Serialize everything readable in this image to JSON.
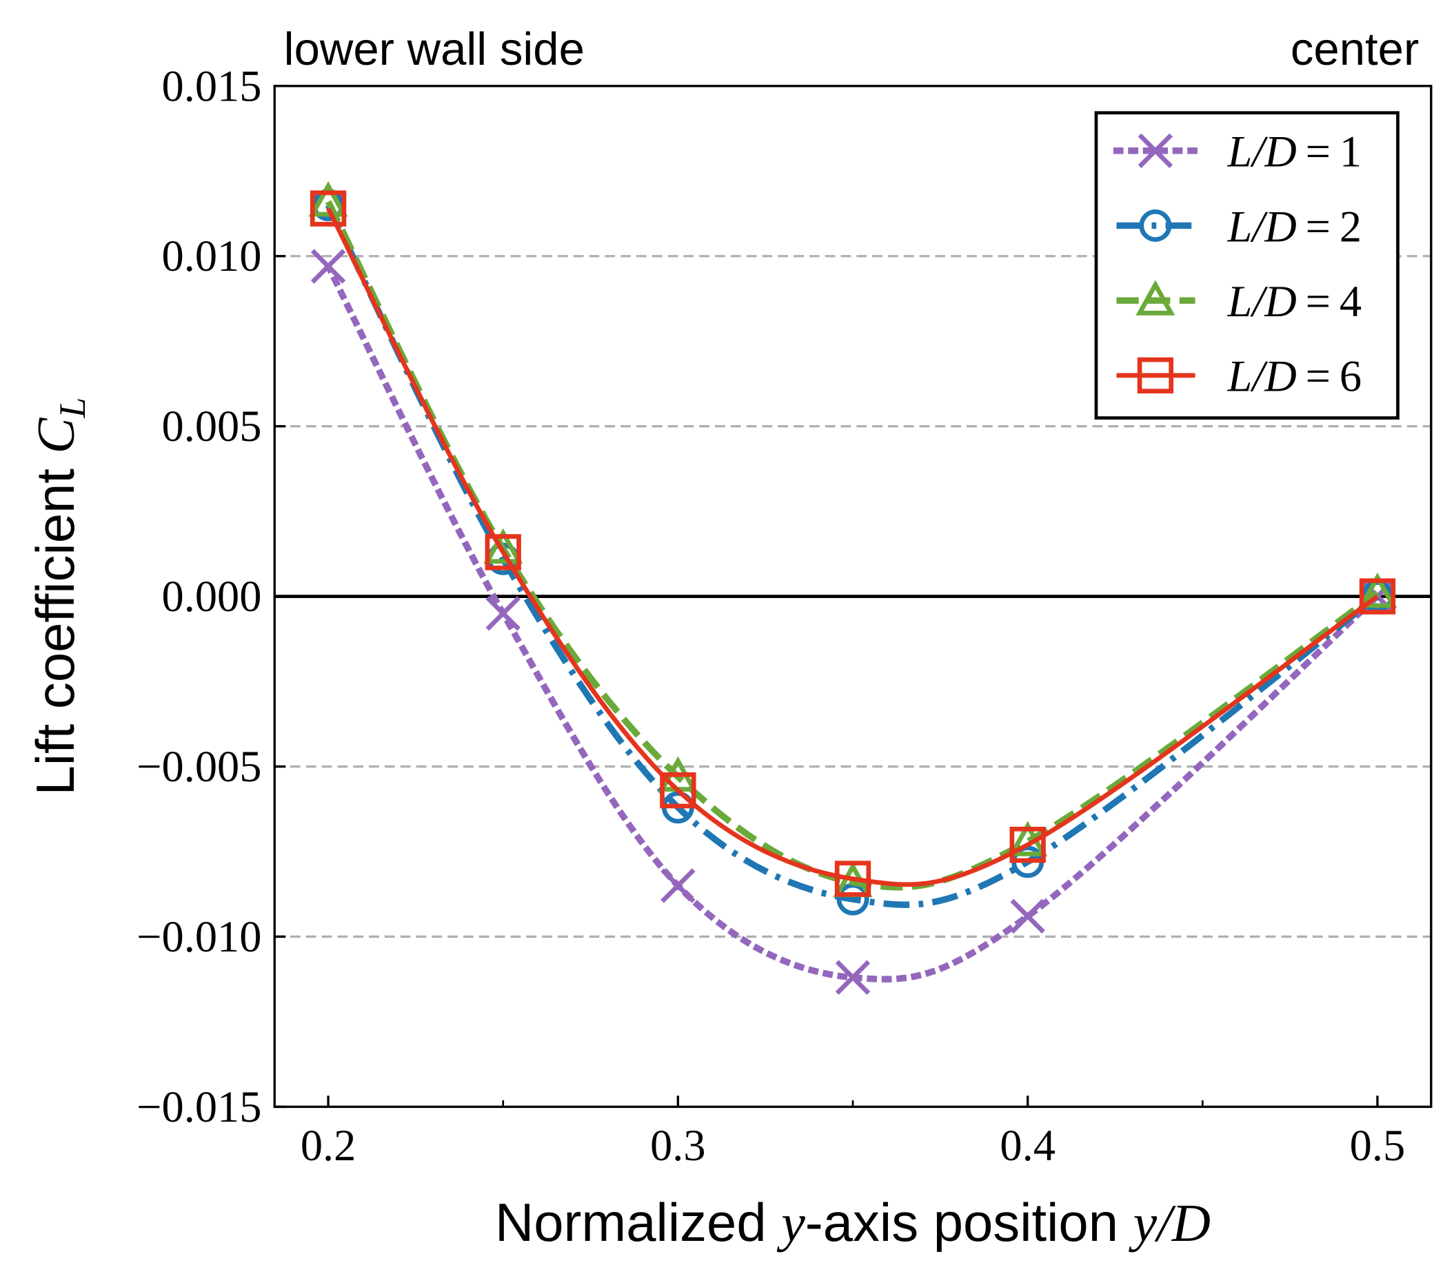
{
  "chart_data": {
    "type": "line",
    "xlabel": "Normalized y-axis position y/D",
    "ylabel": "Lift coefficient C_L",
    "xlabel_parts": {
      "pre": "Normalized ",
      "var1": "y",
      "mid": "-axis position ",
      "var2": "y/D"
    },
    "ylabel_parts": {
      "pre": "Lift coefficient ",
      "var": "C",
      "sub": "L"
    },
    "annotations": {
      "left": "lower wall side",
      "right": "center"
    },
    "xlim": [
      0.185,
      0.516
    ],
    "ylim": [
      -0.015,
      0.015
    ],
    "xticks": [
      0.2,
      0.3,
      0.4,
      0.5
    ],
    "xtick_labels": [
      "0.2",
      "0.3",
      "0.4",
      "0.5"
    ],
    "xminor": [
      0.25,
      0.35,
      0.45
    ],
    "yticks": [
      0.015,
      0.01,
      0.005,
      0.0,
      -0.005,
      -0.01,
      -0.015
    ],
    "ytick_labels": [
      "0.015",
      "0.010",
      "0.005",
      "0.000",
      "−0.005",
      "−0.010",
      "−0.015"
    ],
    "grid": "horizontal dashed",
    "legend_placement": "top-right",
    "x": [
      0.2,
      0.25,
      0.3,
      0.35,
      0.4,
      0.5
    ],
    "series": [
      {
        "name": "L/D = 1",
        "label_var": "L/D",
        "label_val": "1",
        "color": "#9467bd",
        "marker": "x",
        "dash": "dotted",
        "values": [
          0.0097,
          -0.0005,
          -0.0085,
          -0.0112,
          -0.0094,
          0.0
        ]
      },
      {
        "name": "L/D = 2",
        "label_var": "L/D",
        "label_val": "2",
        "color": "#1f77b4",
        "marker": "o",
        "dash": "dashdot",
        "values": [
          0.0115,
          0.0011,
          -0.0062,
          -0.0089,
          -0.0078,
          0.0
        ]
      },
      {
        "name": "L/D = 4",
        "label_var": "L/D",
        "label_val": "4",
        "color": "#6aaa3a",
        "marker": "triangle",
        "dash": "dashed",
        "values": [
          0.0116,
          0.0014,
          -0.0053,
          -0.0084,
          -0.0072,
          0.0001
        ]
      },
      {
        "name": "L/D = 6",
        "label_var": "L/D",
        "label_val": "6",
        "color": "#e5341d",
        "marker": "square",
        "dash": "solid",
        "values": [
          0.0114,
          0.0013,
          -0.0057,
          -0.0083,
          -0.0073,
          0.0
        ]
      }
    ]
  }
}
